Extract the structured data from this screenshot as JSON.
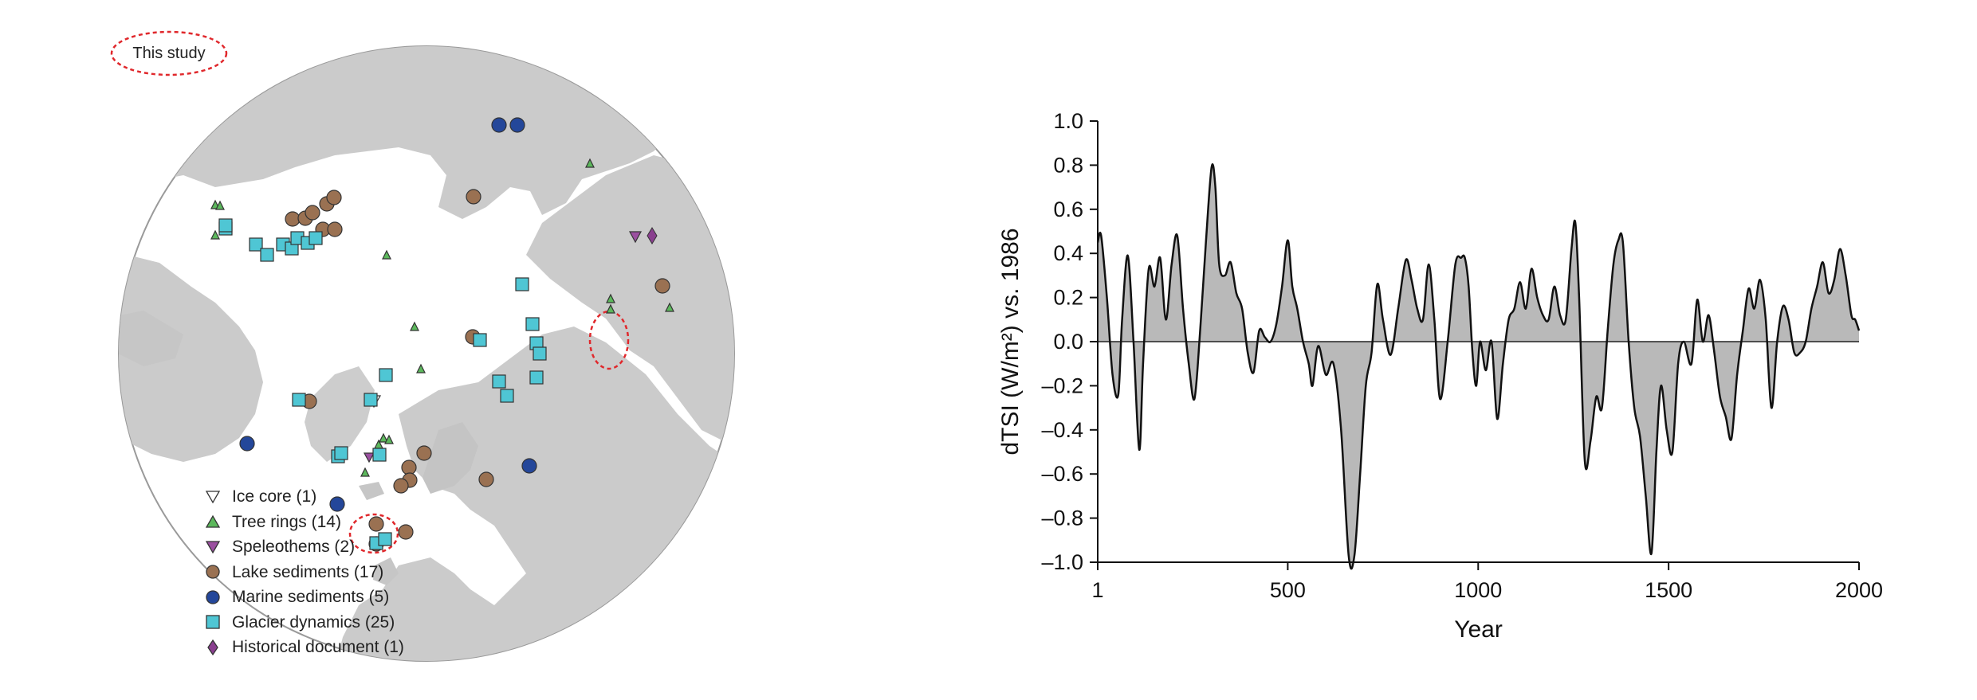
{
  "map": {
    "this_study_label": "This study",
    "legend": [
      {
        "key": "ice_core",
        "label": "Ice core (1)",
        "shape": "triangle-down",
        "color": "#ffffff"
      },
      {
        "key": "tree_rings",
        "label": "Tree rings (14)",
        "shape": "triangle-up",
        "color": "#5cb85c"
      },
      {
        "key": "speleothems",
        "label": "Speleothems (2)",
        "shape": "triangle-down",
        "color": "#9b4fa0"
      },
      {
        "key": "lake_sediments",
        "label": "Lake sediments (17)",
        "shape": "circle",
        "color": "#9a7152"
      },
      {
        "key": "marine_sediments",
        "label": "Marine sediments (5)",
        "shape": "circle",
        "color": "#24479a"
      },
      {
        "key": "glacier_dynamics",
        "label": "Glacier dynamics (25)",
        "shape": "square",
        "color": "#4fc6d4"
      },
      {
        "key": "historical_document",
        "label": "Historical document (1)",
        "shape": "diamond",
        "color": "#8a3f8f"
      }
    ],
    "colors": {
      "land": "#c9c9c9",
      "ocean": "#ffffff",
      "outline": "#888888",
      "highlight": "#e0282c"
    }
  },
  "chart_data": {
    "type": "area",
    "title": "",
    "xlabel": "Year",
    "ylabel": "dTSI (W/m²) vs. 1986",
    "xlim": [
      1,
      2000
    ],
    "ylim": [
      -1.0,
      1.0
    ],
    "xticks": [
      "1",
      "500",
      "1000",
      "1500",
      "2000"
    ],
    "xtick_values": [
      1,
      500,
      1000,
      1500,
      2000
    ],
    "yticks": [
      "1.0",
      "0.8",
      "0.6",
      "0.4",
      "0.2",
      "0.0",
      "–0.2",
      "–0.4",
      "–0.6",
      "–0.8",
      "–1.0"
    ],
    "ytick_values": [
      1.0,
      0.8,
      0.6,
      0.4,
      0.2,
      0.0,
      -0.2,
      -0.4,
      -0.6,
      -0.8,
      -1.0
    ],
    "grid": false,
    "fill_color": "#b9b9b9",
    "line_color": "#111111",
    "series": [
      {
        "x": [
          1,
          10,
          25,
          40,
          55,
          65,
          80,
          95,
          110,
          120,
          135,
          150,
          165,
          180,
          195,
          210,
          225,
          240,
          255,
          270,
          285,
          300,
          310,
          320,
          335,
          350,
          365,
          380,
          395,
          410,
          425,
          440,
          455,
          470,
          485,
          500,
          512,
          525,
          540,
          555,
          565,
          580,
          600,
          620,
          640,
          660,
          675,
          690,
          705,
          720,
          735,
          750,
          770,
          790,
          810,
          825,
          840,
          855,
          870,
          885,
          900,
          920,
          940,
          955,
          965,
          975,
          985,
          995,
          1005,
          1020,
          1035,
          1050,
          1065,
          1080,
          1095,
          1110,
          1125,
          1140,
          1155,
          1170,
          1185,
          1200,
          1215,
          1230,
          1245,
          1255,
          1265,
          1280,
          1295,
          1310,
          1325,
          1340,
          1355,
          1368,
          1380,
          1395,
          1410,
          1425,
          1440,
          1455,
          1468,
          1480,
          1495,
          1510,
          1525,
          1540,
          1560,
          1575,
          1590,
          1605,
          1620,
          1635,
          1650,
          1665,
          1680,
          1695,
          1710,
          1725,
          1740,
          1755,
          1770,
          1785,
          1800,
          1815,
          1830,
          1845,
          1860,
          1875,
          1890,
          1905,
          1920,
          1935,
          1950,
          1965,
          1980,
          1990,
          2000
        ],
        "y": [
          0.45,
          0.48,
          0.2,
          -0.15,
          -0.24,
          0.1,
          0.39,
          0.0,
          -0.49,
          -0.1,
          0.33,
          0.25,
          0.38,
          0.1,
          0.35,
          0.48,
          0.15,
          -0.1,
          -0.26,
          0.05,
          0.45,
          0.79,
          0.7,
          0.35,
          0.3,
          0.36,
          0.22,
          0.15,
          -0.05,
          -0.14,
          0.05,
          0.02,
          0.0,
          0.08,
          0.25,
          0.46,
          0.25,
          0.15,
          0.0,
          -0.1,
          -0.2,
          -0.02,
          -0.15,
          -0.1,
          -0.4,
          -0.97,
          -0.97,
          -0.6,
          -0.2,
          -0.05,
          0.26,
          0.1,
          -0.06,
          0.15,
          0.37,
          0.28,
          0.15,
          0.1,
          0.35,
          0.1,
          -0.26,
          0.0,
          0.35,
          0.38,
          0.38,
          0.25,
          -0.05,
          -0.2,
          0.0,
          -0.13,
          0.0,
          -0.35,
          -0.1,
          0.1,
          0.15,
          0.27,
          0.15,
          0.33,
          0.2,
          0.12,
          0.1,
          0.25,
          0.12,
          0.1,
          0.42,
          0.54,
          0.2,
          -0.54,
          -0.45,
          -0.25,
          -0.3,
          0.05,
          0.35,
          0.46,
          0.45,
          0.0,
          -0.3,
          -0.43,
          -0.7,
          -0.96,
          -0.5,
          -0.2,
          -0.4,
          -0.5,
          -0.1,
          0.0,
          -0.1,
          0.19,
          0.0,
          0.12,
          -0.05,
          -0.25,
          -0.34,
          -0.44,
          -0.15,
          0.05,
          0.24,
          0.15,
          0.28,
          0.1,
          -0.3,
          0.0,
          0.16,
          0.1,
          -0.05,
          -0.05,
          0.0,
          0.15,
          0.25,
          0.36,
          0.22,
          0.28,
          0.42,
          0.3,
          0.12,
          0.1,
          0.05
        ]
      }
    ]
  }
}
